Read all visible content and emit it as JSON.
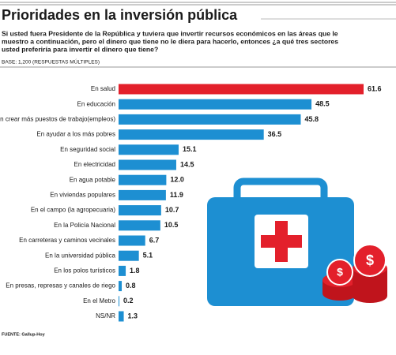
{
  "chart_data": {
    "type": "bar",
    "orientation": "horizontal",
    "title": "Prioridades en la inversión pública",
    "subtitle": [
      "Si usted fuera Presidente de la República y tuviera que invertir recursos económicos en las áreas que le",
      "muestro a continuación, pero el dinero que tiene no le diera para hacerlo, entonces ¿a qué tres sectores",
      "usted preferiría para invertir el dinero que tiene?"
    ],
    "base": "BASE: 1,200 (RESPUESTAS MÚLTIPLES)",
    "source": "FUENTE: Gallup-Hoy",
    "categories": [
      "En salud",
      "En educación",
      "En crear más puestos de trabajo(empleos)",
      "En ayudar a los más pobres",
      "En seguridad social",
      "En electricidad",
      "En agua potable",
      "En viviendas populares",
      "En el campo (la agropecuaria)",
      "En la Policía Nacional",
      "En carreteras y caminos vecinales",
      "En la universidad pública",
      "En los polos turísticos",
      "En presas, represas y canales de riego",
      "En el Metro",
      "NS/NR"
    ],
    "values": [
      61.6,
      48.5,
      45.8,
      36.5,
      15.1,
      14.5,
      12.0,
      11.9,
      10.7,
      10.5,
      6.7,
      5.1,
      1.8,
      0.8,
      0.2,
      1.3
    ],
    "value_labels": [
      "61.6",
      "48.5",
      "45.8",
      "36.5",
      "15.1",
      "14.5",
      "12.0",
      "11.9",
      "10.7",
      "10.5",
      "6.7",
      "5.1",
      "1.8",
      "0.8",
      "0.2",
      "1.3"
    ],
    "colors": [
      "#e3202b",
      "#1d8fd2",
      "#1d8fd2",
      "#1d8fd2",
      "#1d8fd2",
      "#1d8fd2",
      "#1d8fd2",
      "#1d8fd2",
      "#1d8fd2",
      "#1d8fd2",
      "#1d8fd2",
      "#1d8fd2",
      "#1d8fd2",
      "#1d8fd2",
      "#1d8fd2",
      "#1d8fd2"
    ]
  }
}
